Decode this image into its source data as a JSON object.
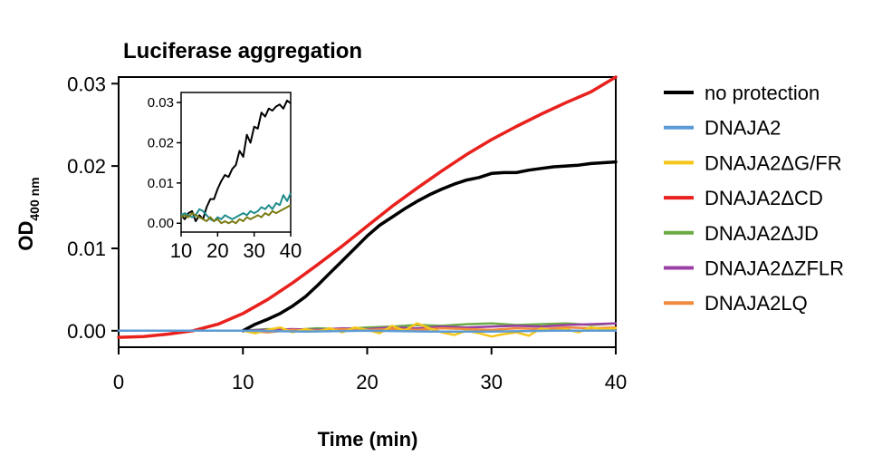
{
  "chart_data": [
    {
      "type": "line",
      "title": "Luciferase aggregation",
      "xlabel": "Time (min)",
      "ylabel": "OD",
      "ylabel_sub": "400 nm",
      "xlim": [
        0,
        40
      ],
      "ylim": [
        -0.002,
        0.0308
      ],
      "xticks": [
        "0",
        "10",
        "20",
        "30",
        "40"
      ],
      "yticks": [
        "0.00",
        "0.01",
        "0.02",
        "0.03"
      ],
      "grid": false,
      "legend_position": "right",
      "series": [
        {
          "name": "no protection",
          "color": "#000000",
          "x": [
            10,
            11,
            12,
            13,
            14,
            15,
            16,
            17,
            18,
            19,
            20,
            21,
            22,
            23,
            24,
            25,
            26,
            27,
            28,
            29,
            30,
            31,
            32,
            33,
            34,
            35,
            36,
            37,
            38,
            39,
            40
          ],
          "y": [
            0.0,
            0.0008,
            0.0014,
            0.0021,
            0.003,
            0.0041,
            0.0055,
            0.007,
            0.0085,
            0.01,
            0.0115,
            0.0128,
            0.0138,
            0.0148,
            0.0157,
            0.0165,
            0.0172,
            0.0178,
            0.0183,
            0.0186,
            0.0191,
            0.0192,
            0.0192,
            0.0195,
            0.0197,
            0.0199,
            0.02,
            0.0201,
            0.0203,
            0.0204,
            0.0205
          ]
        },
        {
          "name": "DNAJA2",
          "color": "#5b9bd5",
          "x": [
            0,
            5,
            10,
            15,
            20,
            25,
            30,
            35,
            40
          ],
          "y": [
            0.0,
            0.0,
            0.0,
            -0.0001,
            0.0,
            -0.0001,
            -0.0001,
            0.0,
            0.0
          ]
        },
        {
          "name": "DNAJA2ΔG/FR",
          "color": "#f5c518",
          "x": [
            10,
            11,
            12,
            13,
            14,
            15,
            16,
            17,
            18,
            19,
            20,
            21,
            22,
            23,
            24,
            25,
            26,
            27,
            28,
            29,
            30,
            31,
            32,
            33,
            34,
            35,
            36,
            37,
            38,
            39,
            40
          ],
          "y": [
            0.0,
            -0.0003,
            0.0001,
            0.0004,
            -0.0002,
            0.0002,
            -0.0001,
            0.0003,
            -0.0002,
            0.0004,
            0.0001,
            -0.0003,
            0.0006,
            0.0,
            0.0009,
            0.0003,
            -0.0002,
            -0.0005,
            0.0,
            -0.0003,
            -0.0007,
            -0.0004,
            -0.0002,
            -0.0006,
            0.0003,
            0.0,
            0.0002,
            -0.0002,
            0.0004,
            0.0002,
            0.0003
          ]
        },
        {
          "name": "DNAJA2ΔCD",
          "color": "#e8211d",
          "x": [
            0,
            2,
            4,
            6,
            8,
            10,
            12,
            14,
            16,
            18,
            20,
            22,
            24,
            26,
            28,
            30,
            32,
            34,
            36,
            38,
            40
          ],
          "y": [
            -0.0008,
            -0.0007,
            -0.0004,
            0.0,
            0.0008,
            0.0021,
            0.0038,
            0.0058,
            0.008,
            0.0103,
            0.0127,
            0.0151,
            0.0173,
            0.0194,
            0.0214,
            0.0232,
            0.0248,
            0.0263,
            0.0277,
            0.029,
            0.0308
          ]
        },
        {
          "name": "DNAJA2ΔJD",
          "color": "#6aab45",
          "x": [
            10,
            12,
            14,
            16,
            18,
            20,
            22,
            24,
            26,
            28,
            30,
            32,
            34,
            36,
            38,
            40
          ],
          "y": [
            0.0,
            0.0002,
            0.0001,
            0.0003,
            0.0002,
            0.0004,
            0.0005,
            0.0007,
            0.0006,
            0.0008,
            0.0009,
            0.0007,
            0.0008,
            0.0009,
            0.0007,
            0.0009
          ]
        },
        {
          "name": "DNAJA2ΔZFLR",
          "color": "#9b3fa5",
          "x": [
            10,
            12,
            14,
            16,
            18,
            20,
            22,
            24,
            26,
            28,
            30,
            32,
            34,
            36,
            38,
            40
          ],
          "y": [
            0.0,
            0.0001,
            0.0002,
            0.0001,
            0.0003,
            0.0002,
            0.0004,
            0.0003,
            0.0005,
            0.0004,
            0.0005,
            0.0006,
            0.0005,
            0.0007,
            0.0008,
            0.0009
          ]
        },
        {
          "name": "DNAJA2LQ",
          "color": "#f08a3c",
          "x": [
            10,
            12,
            14,
            16,
            18,
            20,
            22,
            24,
            26,
            28,
            30,
            32,
            34,
            36,
            38,
            40
          ],
          "y": [
            0.0,
            -0.0002,
            0.0001,
            0.0,
            0.0002,
            0.0001,
            0.0002,
            0.0001,
            0.0003,
            0.0002,
            0.0001,
            0.0003,
            0.0002,
            0.0004,
            0.0003,
            0.0004
          ]
        }
      ]
    },
    {
      "type": "line",
      "title": "",
      "xlabel": "",
      "ylabel": "",
      "xlim": [
        10,
        40
      ],
      "ylim": [
        -0.0022,
        0.0325
      ],
      "xticks": [
        "10",
        "20",
        "30",
        "40"
      ],
      "yticks": [
        "0.00",
        "0.01",
        "0.02",
        "0.03"
      ],
      "grid": false,
      "series": [
        {
          "color": "#000000",
          "x": [
            10,
            11,
            12,
            13,
            14,
            15,
            16,
            17,
            18,
            19,
            20,
            21,
            22,
            23,
            24,
            25,
            26,
            27,
            28,
            29,
            30,
            31,
            32,
            33,
            34,
            35,
            36,
            37,
            38,
            39,
            40
          ],
          "y": [
            0.002,
            0.001,
            0.0025,
            0.003,
            0.0005,
            0.002,
            0.001,
            0.004,
            0.006,
            0.006,
            0.0085,
            0.0105,
            0.012,
            0.0115,
            0.0135,
            0.0145,
            0.018,
            0.0165,
            0.022,
            0.02,
            0.024,
            0.0235,
            0.0275,
            0.0265,
            0.0285,
            0.028,
            0.029,
            0.0295,
            0.0285,
            0.0305,
            0.0298
          ]
        },
        {
          "color": "#1f8c8c",
          "x": [
            10,
            11,
            12,
            13,
            14,
            15,
            16,
            17,
            18,
            19,
            20,
            21,
            22,
            23,
            24,
            25,
            26,
            27,
            28,
            29,
            30,
            31,
            32,
            33,
            34,
            35,
            36,
            37,
            38,
            39,
            40
          ],
          "y": [
            0.002,
            0.0025,
            0.002,
            0.0015,
            0.002,
            0.0035,
            0.003,
            0.002,
            0.001,
            0.0005,
            0.0015,
            0.001,
            0.002,
            0.0015,
            0.001,
            0.0015,
            0.002,
            0.0025,
            0.002,
            0.003,
            0.0025,
            0.003,
            0.004,
            0.0035,
            0.0045,
            0.0035,
            0.005,
            0.0045,
            0.007,
            0.0055,
            0.0075
          ]
        },
        {
          "color": "#7a7a12",
          "x": [
            10,
            11,
            12,
            13,
            14,
            15,
            16,
            17,
            18,
            19,
            20,
            21,
            22,
            23,
            24,
            25,
            26,
            27,
            28,
            29,
            30,
            31,
            32,
            33,
            34,
            35,
            36,
            37,
            38,
            39,
            40
          ],
          "y": [
            0.0015,
            0.002,
            0.0015,
            0.0025,
            0.002,
            0.0015,
            0.001,
            0.0005,
            0.0015,
            0.0005,
            0.001,
            0.0,
            0.0005,
            0.0,
            0.0005,
            0.0,
            0.001,
            0.0005,
            0.0015,
            0.001,
            0.0015,
            0.002,
            0.0015,
            0.0025,
            0.002,
            0.003,
            0.0025,
            0.003,
            0.0035,
            0.004,
            0.0045
          ]
        }
      ]
    }
  ]
}
